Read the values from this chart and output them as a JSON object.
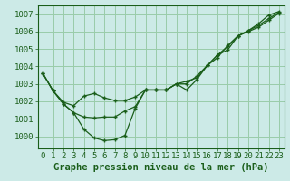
{
  "title": "Graphe pression niveau de la mer (hPa)",
  "background_color": "#cceae7",
  "grid_color": "#99ccaa",
  "line_color": "#1a5e1a",
  "marker_color": "#1a5e1a",
  "ylim": [
    999.3,
    1007.5
  ],
  "yticks": [
    1000,
    1001,
    1002,
    1003,
    1004,
    1005,
    1006,
    1007
  ],
  "xlim": [
    -0.5,
    23.5
  ],
  "xticks": [
    0,
    1,
    2,
    3,
    4,
    5,
    6,
    7,
    8,
    9,
    10,
    11,
    12,
    13,
    14,
    15,
    16,
    17,
    18,
    19,
    20,
    21,
    22,
    23
  ],
  "series": [
    [
      1003.6,
      1002.6,
      1001.85,
      1001.35,
      1000.4,
      999.9,
      999.75,
      999.8,
      1000.05,
      1001.6,
      1002.65,
      1002.65,
      1002.65,
      1003.0,
      1002.65,
      1003.25,
      1004.05,
      1004.65,
      1004.95,
      1005.75,
      1006.05,
      1006.45,
      1006.95,
      1007.15
    ],
    [
      1003.6,
      1002.6,
      1001.95,
      1001.75,
      1002.3,
      1002.45,
      1002.2,
      1002.05,
      1002.05,
      1002.25,
      1002.65,
      1002.65,
      1002.65,
      1003.0,
      1003.0,
      1003.45,
      1004.05,
      1004.5,
      1005.2,
      1005.75,
      1006.0,
      1006.25,
      1006.65,
      1007.05
    ],
    [
      1003.6,
      1002.6,
      1001.85,
      1001.35,
      1001.1,
      1001.05,
      1001.1,
      1001.1,
      1001.45,
      1001.7,
      1002.65,
      1002.65,
      1002.65,
      1003.0,
      1003.15,
      1003.35,
      1004.05,
      1004.65,
      1005.15,
      1005.75,
      1006.05,
      1006.35,
      1006.75,
      1007.1
    ]
  ],
  "xlabel_fontsize": 6.5,
  "ylabel_fontsize": 6.5,
  "title_fontsize": 7.5
}
